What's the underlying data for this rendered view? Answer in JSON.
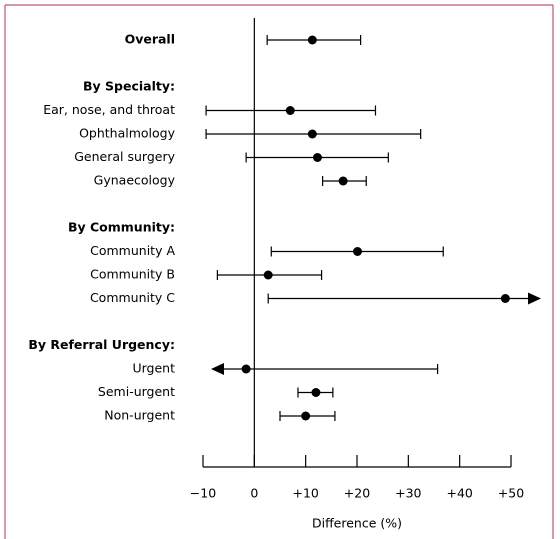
{
  "chart_data": {
    "type": "forest",
    "categories": [
      "Overall",
      null,
      "By Specialty:",
      "Ear, nose, and throat",
      "Ophthalmology",
      "General surgery",
      "Gynaecology",
      null,
      "By Community:",
      "Community A",
      "Community B",
      "Community C",
      null,
      "By Referral Urgency:",
      "Urgent",
      "Semi-urgent",
      "Non-urgent"
    ],
    "bold": [
      true,
      false,
      true,
      false,
      false,
      false,
      false,
      false,
      true,
      false,
      false,
      false,
      false,
      true,
      false,
      false,
      false
    ],
    "values": [
      11.3,
      null,
      null,
      7,
      11.3,
      12.3,
      17.3,
      null,
      null,
      20.1,
      2.7,
      48.9,
      null,
      null,
      -1.6,
      12,
      10
    ],
    "lower": [
      2.5,
      null,
      null,
      -9.4,
      -9.4,
      -1.6,
      13.3,
      null,
      null,
      3.3,
      -7.2,
      2.7,
      null,
      null,
      null,
      8.5,
      5
    ],
    "upper": [
      20.7,
      null,
      null,
      23.6,
      32.4,
      26.1,
      21.8,
      null,
      null,
      36.8,
      13.1,
      null,
      null,
      null,
      35.7,
      15.3,
      15.7
    ],
    "xlabel": "Difference (%)",
    "xlim": [
      -10,
      50
    ],
    "xticks": [
      {
        "value": -10,
        "label": "−10"
      },
      0,
      {
        "value": 10,
        "label": "+10"
      },
      {
        "value": 20,
        "label": "+20"
      },
      {
        "value": 30,
        "label": "+30"
      },
      {
        "value": 40,
        "label": "+40"
      },
      {
        "value": 50,
        "label": "+50"
      }
    ],
    "color": "#000000"
  }
}
